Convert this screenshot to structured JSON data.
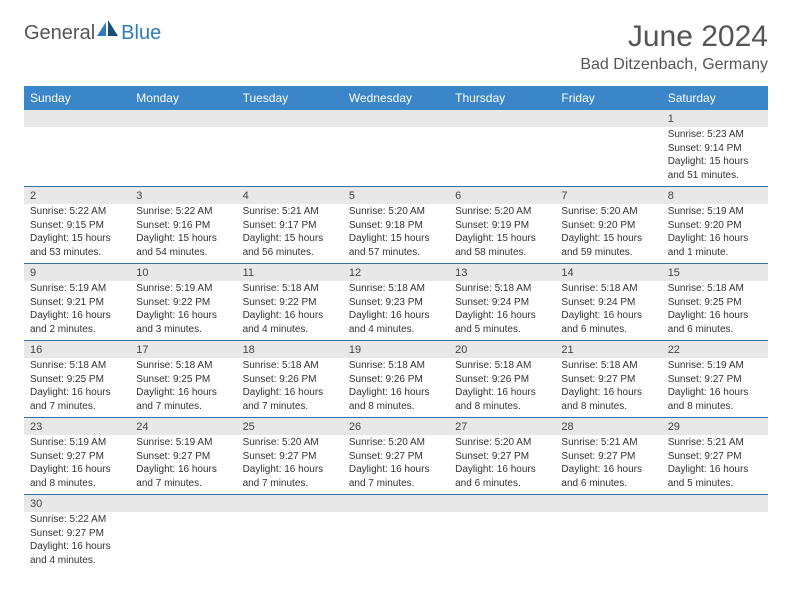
{
  "logo": {
    "part1": "General",
    "part2": "Blue"
  },
  "title": "June 2024",
  "location": "Bad Ditzenbach, Germany",
  "colors": {
    "header_bg": "#3a86c8",
    "header_text": "#ffffff",
    "daynum_bg": "#e8e8e8",
    "border": "#3a6fa8",
    "text": "#333333",
    "title_text": "#555555",
    "logo_accent": "#2f7bbf"
  },
  "day_headers": [
    "Sunday",
    "Monday",
    "Tuesday",
    "Wednesday",
    "Thursday",
    "Friday",
    "Saturday"
  ],
  "weeks": [
    {
      "nums": [
        "",
        "",
        "",
        "",
        "",
        "",
        "1"
      ],
      "cells": [
        null,
        null,
        null,
        null,
        null,
        null,
        {
          "sunrise": "Sunrise: 5:23 AM",
          "sunset": "Sunset: 9:14 PM",
          "daylight": "Daylight: 15 hours and 51 minutes."
        }
      ]
    },
    {
      "nums": [
        "2",
        "3",
        "4",
        "5",
        "6",
        "7",
        "8"
      ],
      "cells": [
        {
          "sunrise": "Sunrise: 5:22 AM",
          "sunset": "Sunset: 9:15 PM",
          "daylight": "Daylight: 15 hours and 53 minutes."
        },
        {
          "sunrise": "Sunrise: 5:22 AM",
          "sunset": "Sunset: 9:16 PM",
          "daylight": "Daylight: 15 hours and 54 minutes."
        },
        {
          "sunrise": "Sunrise: 5:21 AM",
          "sunset": "Sunset: 9:17 PM",
          "daylight": "Daylight: 15 hours and 56 minutes."
        },
        {
          "sunrise": "Sunrise: 5:20 AM",
          "sunset": "Sunset: 9:18 PM",
          "daylight": "Daylight: 15 hours and 57 minutes."
        },
        {
          "sunrise": "Sunrise: 5:20 AM",
          "sunset": "Sunset: 9:19 PM",
          "daylight": "Daylight: 15 hours and 58 minutes."
        },
        {
          "sunrise": "Sunrise: 5:20 AM",
          "sunset": "Sunset: 9:20 PM",
          "daylight": "Daylight: 15 hours and 59 minutes."
        },
        {
          "sunrise": "Sunrise: 5:19 AM",
          "sunset": "Sunset: 9:20 PM",
          "daylight": "Daylight: 16 hours and 1 minute."
        }
      ]
    },
    {
      "nums": [
        "9",
        "10",
        "11",
        "12",
        "13",
        "14",
        "15"
      ],
      "cells": [
        {
          "sunrise": "Sunrise: 5:19 AM",
          "sunset": "Sunset: 9:21 PM",
          "daylight": "Daylight: 16 hours and 2 minutes."
        },
        {
          "sunrise": "Sunrise: 5:19 AM",
          "sunset": "Sunset: 9:22 PM",
          "daylight": "Daylight: 16 hours and 3 minutes."
        },
        {
          "sunrise": "Sunrise: 5:18 AM",
          "sunset": "Sunset: 9:22 PM",
          "daylight": "Daylight: 16 hours and 4 minutes."
        },
        {
          "sunrise": "Sunrise: 5:18 AM",
          "sunset": "Sunset: 9:23 PM",
          "daylight": "Daylight: 16 hours and 4 minutes."
        },
        {
          "sunrise": "Sunrise: 5:18 AM",
          "sunset": "Sunset: 9:24 PM",
          "daylight": "Daylight: 16 hours and 5 minutes."
        },
        {
          "sunrise": "Sunrise: 5:18 AM",
          "sunset": "Sunset: 9:24 PM",
          "daylight": "Daylight: 16 hours and 6 minutes."
        },
        {
          "sunrise": "Sunrise: 5:18 AM",
          "sunset": "Sunset: 9:25 PM",
          "daylight": "Daylight: 16 hours and 6 minutes."
        }
      ]
    },
    {
      "nums": [
        "16",
        "17",
        "18",
        "19",
        "20",
        "21",
        "22"
      ],
      "cells": [
        {
          "sunrise": "Sunrise: 5:18 AM",
          "sunset": "Sunset: 9:25 PM",
          "daylight": "Daylight: 16 hours and 7 minutes."
        },
        {
          "sunrise": "Sunrise: 5:18 AM",
          "sunset": "Sunset: 9:25 PM",
          "daylight": "Daylight: 16 hours and 7 minutes."
        },
        {
          "sunrise": "Sunrise: 5:18 AM",
          "sunset": "Sunset: 9:26 PM",
          "daylight": "Daylight: 16 hours and 7 minutes."
        },
        {
          "sunrise": "Sunrise: 5:18 AM",
          "sunset": "Sunset: 9:26 PM",
          "daylight": "Daylight: 16 hours and 8 minutes."
        },
        {
          "sunrise": "Sunrise: 5:18 AM",
          "sunset": "Sunset: 9:26 PM",
          "daylight": "Daylight: 16 hours and 8 minutes."
        },
        {
          "sunrise": "Sunrise: 5:18 AM",
          "sunset": "Sunset: 9:27 PM",
          "daylight": "Daylight: 16 hours and 8 minutes."
        },
        {
          "sunrise": "Sunrise: 5:19 AM",
          "sunset": "Sunset: 9:27 PM",
          "daylight": "Daylight: 16 hours and 8 minutes."
        }
      ]
    },
    {
      "nums": [
        "23",
        "24",
        "25",
        "26",
        "27",
        "28",
        "29"
      ],
      "cells": [
        {
          "sunrise": "Sunrise: 5:19 AM",
          "sunset": "Sunset: 9:27 PM",
          "daylight": "Daylight: 16 hours and 8 minutes."
        },
        {
          "sunrise": "Sunrise: 5:19 AM",
          "sunset": "Sunset: 9:27 PM",
          "daylight": "Daylight: 16 hours and 7 minutes."
        },
        {
          "sunrise": "Sunrise: 5:20 AM",
          "sunset": "Sunset: 9:27 PM",
          "daylight": "Daylight: 16 hours and 7 minutes."
        },
        {
          "sunrise": "Sunrise: 5:20 AM",
          "sunset": "Sunset: 9:27 PM",
          "daylight": "Daylight: 16 hours and 7 minutes."
        },
        {
          "sunrise": "Sunrise: 5:20 AM",
          "sunset": "Sunset: 9:27 PM",
          "daylight": "Daylight: 16 hours and 6 minutes."
        },
        {
          "sunrise": "Sunrise: 5:21 AM",
          "sunset": "Sunset: 9:27 PM",
          "daylight": "Daylight: 16 hours and 6 minutes."
        },
        {
          "sunrise": "Sunrise: 5:21 AM",
          "sunset": "Sunset: 9:27 PM",
          "daylight": "Daylight: 16 hours and 5 minutes."
        }
      ]
    },
    {
      "nums": [
        "30",
        "",
        "",
        "",
        "",
        "",
        ""
      ],
      "cells": [
        {
          "sunrise": "Sunrise: 5:22 AM",
          "sunset": "Sunset: 9:27 PM",
          "daylight": "Daylight: 16 hours and 4 minutes."
        },
        null,
        null,
        null,
        null,
        null,
        null
      ]
    }
  ]
}
